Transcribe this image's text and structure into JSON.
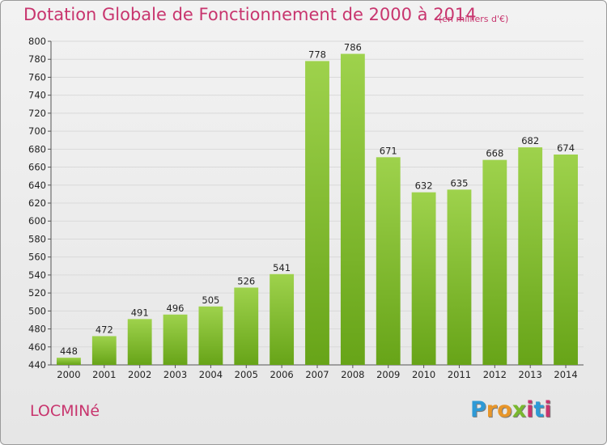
{
  "title": "Dotation Globale de Fonctionnement de 2000 à 2014",
  "unit_note": "(en milliers d'€)",
  "commune": "LOCMINé",
  "logo": {
    "letters": [
      "P",
      "r",
      "o",
      "x",
      "i",
      "t",
      "i"
    ],
    "colors": [
      "#2e9ad6",
      "#e8962a",
      "#e8962a",
      "#79b82e",
      "#c8356e",
      "#2e9ad6",
      "#c8356e"
    ]
  },
  "colors": {
    "title": "#c8356e",
    "bar_light": "#9ed24c",
    "bar_dark": "#67a418",
    "grid": "#d9d9d9",
    "axis": "#555555"
  },
  "chart_data": {
    "type": "bar",
    "categories": [
      "2000",
      "2001",
      "2002",
      "2003",
      "2004",
      "2005",
      "2006",
      "2007",
      "2008",
      "2009",
      "2010",
      "2011",
      "2012",
      "2013",
      "2014"
    ],
    "values": [
      448,
      472,
      491,
      496,
      505,
      526,
      541,
      778,
      786,
      671,
      632,
      635,
      668,
      682,
      674
    ],
    "ylim": [
      440,
      800
    ],
    "ytick_step": 20,
    "grid": true,
    "xlabel": "",
    "ylabel": ""
  }
}
